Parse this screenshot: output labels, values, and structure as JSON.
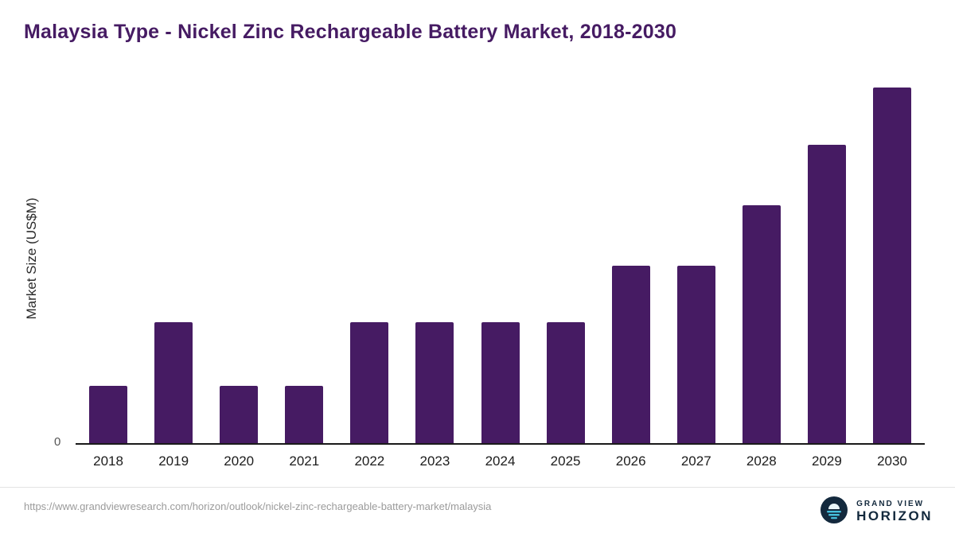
{
  "title": "Malaysia Type - Nickel Zinc Rechargeable Battery Market, 2018-2030",
  "chart_data": {
    "type": "bar",
    "title": "Malaysia Type - Nickel Zinc Rechargeable Battery Market, 2018-2030",
    "categories": [
      "2018",
      "2019",
      "2020",
      "2021",
      "2022",
      "2023",
      "2024",
      "2025",
      "2026",
      "2027",
      "2028",
      "2029",
      "2030"
    ],
    "values": [
      16,
      34,
      16,
      16,
      34,
      34,
      34,
      34,
      50,
      50,
      67,
      84,
      100
    ],
    "xlabel": "",
    "ylabel": "Market Size (US$M)",
    "ylim": [
      0,
      100
    ],
    "y_tick_labels": [
      "0"
    ],
    "grid": false,
    "legend": false,
    "bar_color": "#461b63"
  },
  "axis": {
    "zero_label": "0",
    "ylabel": "Market Size (US$M)"
  },
  "footer": {
    "source_url": "https://www.grandviewresearch.com/horizon/outlook/nickel-zinc-rechargeable-battery-market/malaysia",
    "brand_line1": "GRAND VIEW",
    "brand_line2": "HORIZON"
  },
  "colors": {
    "title": "#461b63",
    "bar": "#461b63",
    "brand_navy": "#13293d",
    "brand_teal": "#45c0dd"
  }
}
